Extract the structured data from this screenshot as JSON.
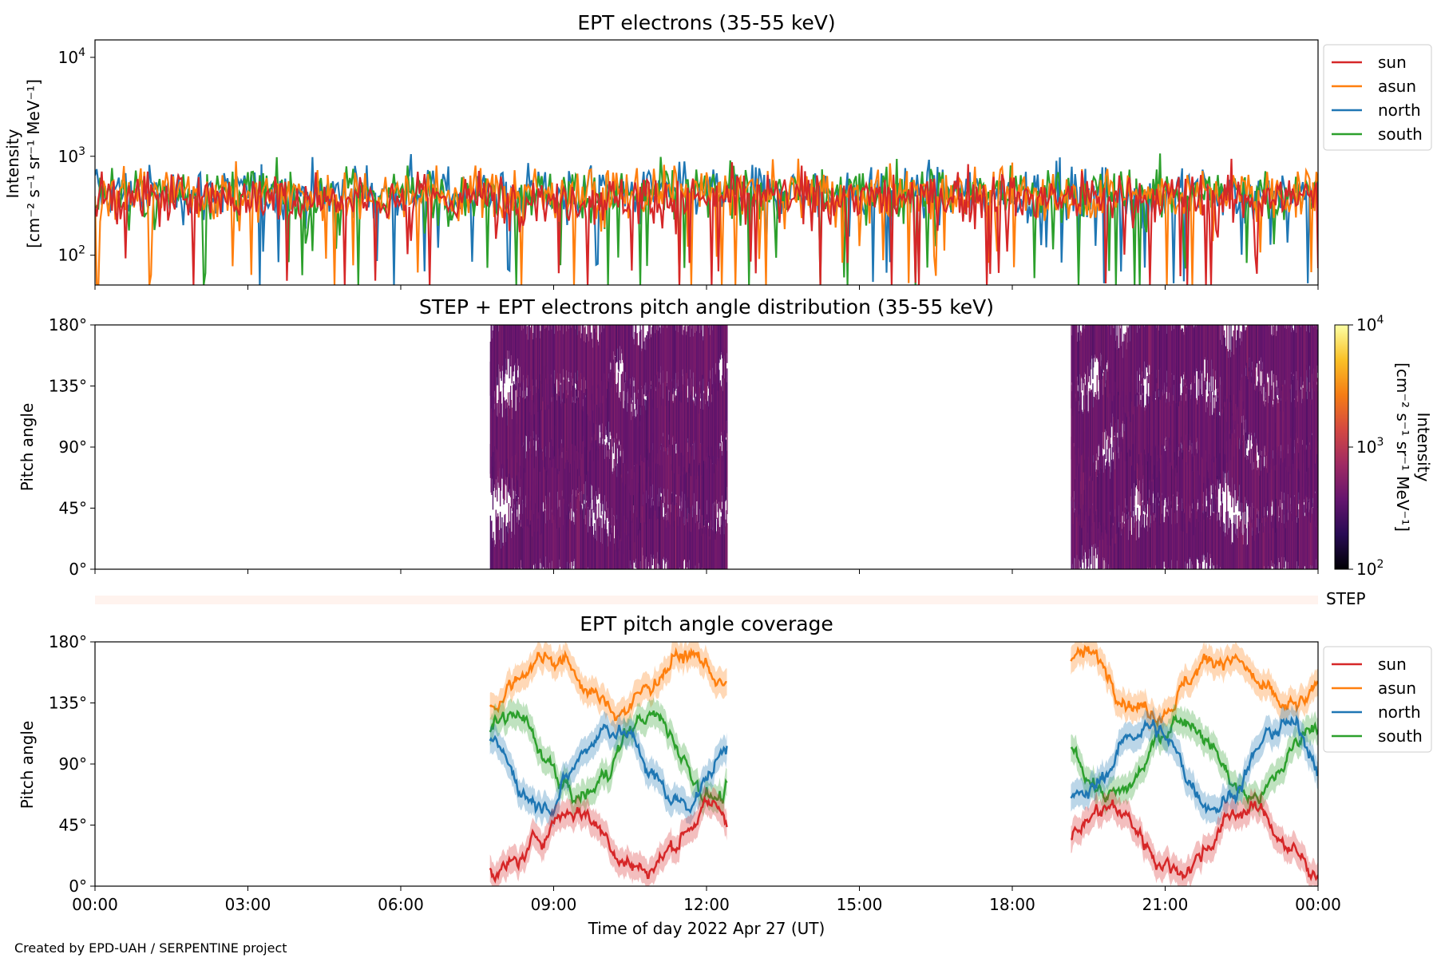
{
  "figure": {
    "xlabel": "Time of day 2022 Apr 27 (UT)",
    "credit": "Created by EPD-UAH / SERPENTINE project",
    "x_ticks": [
      "00:00",
      "03:00",
      "06:00",
      "09:00",
      "12:00",
      "15:00",
      "18:00",
      "21:00",
      "00:00"
    ],
    "colors": {
      "sun": "#d62728",
      "asun": "#ff7f0e",
      "north": "#1f77b4",
      "south": "#2ca02c",
      "step_band": "#fff3ee"
    }
  },
  "chart_data": [
    {
      "id": "intensity",
      "type": "line",
      "title": "EPT electrons (35-55 keV)",
      "ylabel_line1": "Intensity",
      "ylabel_line2": "[cm⁻² s⁻¹ sr⁻¹ MeV⁻¹]",
      "yscale": "log",
      "ylim": [
        50,
        15000
      ],
      "xlim_hours": [
        0,
        24
      ],
      "y_ticks": [
        {
          "value": 100,
          "base": "10",
          "exp": "2"
        },
        {
          "value": 1000,
          "base": "10",
          "exp": "3"
        },
        {
          "value": 10000,
          "base": "10",
          "exp": "4"
        }
      ],
      "legend_location": "outside-right",
      "series": [
        {
          "name": "sun",
          "color": "#d62728",
          "typical": 380,
          "spread": 0.22,
          "max": 1150,
          "min": 50
        },
        {
          "name": "asun",
          "color": "#ff7f0e",
          "typical": 420,
          "spread": 0.22,
          "max": 1000,
          "min": 50
        },
        {
          "name": "north",
          "color": "#1f77b4",
          "typical": 430,
          "spread": 0.22,
          "max": 1050,
          "min": 50
        },
        {
          "name": "south",
          "color": "#2ca02c",
          "typical": 430,
          "spread": 0.22,
          "max": 1200,
          "min": 50
        }
      ]
    },
    {
      "id": "pad",
      "type": "heatmap",
      "title": "STEP + EPT electrons pitch angle distribution (35-55 keV)",
      "ylabel": "Pitch angle",
      "ylim": [
        0,
        180
      ],
      "y_ticks": [
        "0°",
        "45°",
        "90°",
        "135°",
        "180°"
      ],
      "colorbar": {
        "label_line1": "Intensity",
        "label_line2": "[cm⁻² s⁻¹ sr⁻¹ MeV⁻¹]",
        "scale": "log",
        "range": [
          100,
          10000
        ],
        "colormap": "inferno",
        "ticks": [
          {
            "value": 100,
            "base": "10",
            "exp": "2"
          },
          {
            "value": 1000,
            "base": "10",
            "exp": "3"
          },
          {
            "value": 10000,
            "base": "10",
            "exp": "4"
          }
        ]
      },
      "data_intervals_hours": [
        [
          7.75,
          12.4
        ],
        [
          19.15,
          24.0
        ]
      ],
      "typical_intensity": 400
    },
    {
      "id": "step",
      "type": "band",
      "label": "STEP",
      "color": "#fff3ee"
    },
    {
      "id": "coverage",
      "type": "line",
      "title": "EPT pitch angle coverage",
      "ylabel": "Pitch angle",
      "ylim": [
        0,
        180
      ],
      "y_ticks": [
        "0°",
        "45°",
        "90°",
        "135°",
        "180°"
      ],
      "legend_location": "outside-right",
      "data_intervals_hours": [
        [
          7.75,
          12.4
        ],
        [
          19.15,
          24.0
        ]
      ],
      "series": [
        {
          "name": "sun",
          "color": "#d62728",
          "center": 35,
          "amplitude": 22,
          "band": 10
        },
        {
          "name": "asun",
          "color": "#ff7f0e",
          "center": 150,
          "amplitude": 20,
          "band": 10
        },
        {
          "name": "north",
          "color": "#1f77b4",
          "center": 90,
          "amplitude": 28,
          "band": 10
        },
        {
          "name": "south",
          "color": "#2ca02c",
          "center": 95,
          "amplitude": 30,
          "band": 10
        }
      ]
    }
  ]
}
